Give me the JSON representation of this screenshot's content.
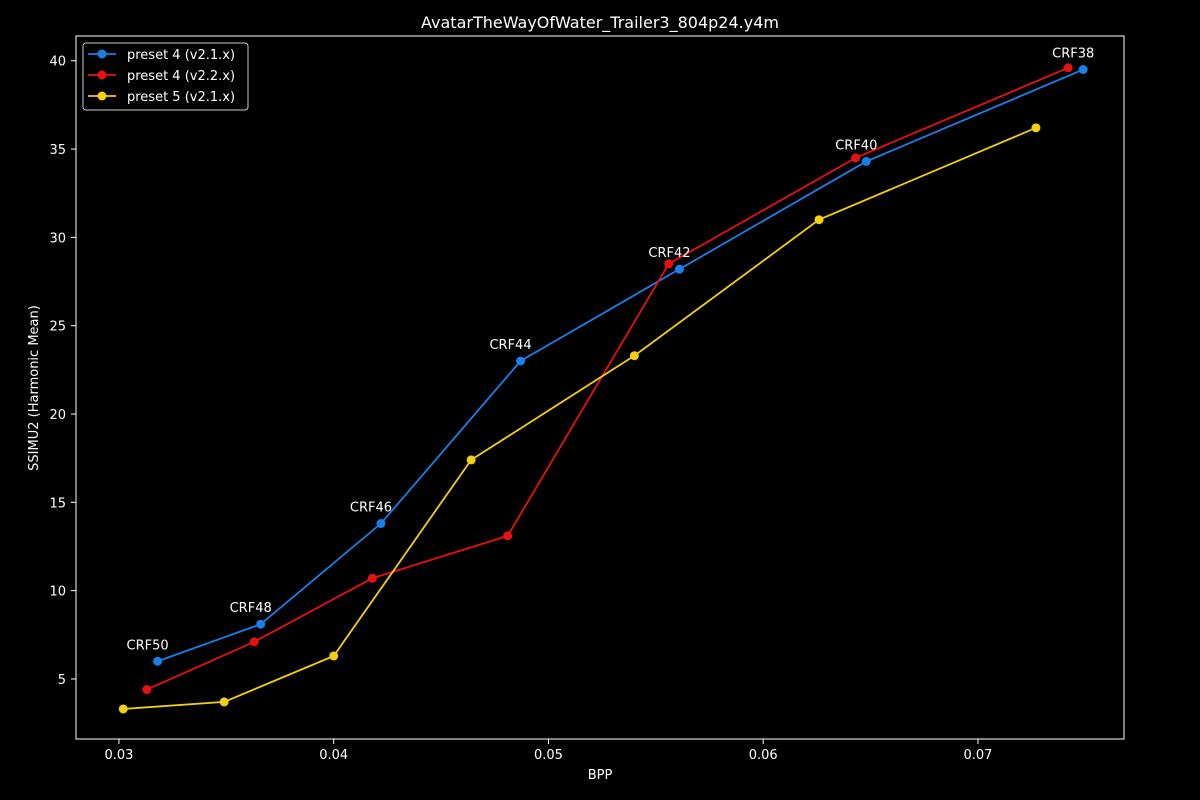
{
  "chart_data": {
    "type": "line",
    "title": "AvatarTheWayOfWater_Trailer3_804p24.y4m",
    "xlabel": "BPP",
    "ylabel": "SSIMU2 (Harmonic Mean)",
    "xlim": [
      0.028,
      0.0768
    ],
    "ylim": [
      1.6,
      41.4
    ],
    "xticks": [
      "0.03",
      "0.04",
      "0.05",
      "0.06",
      "0.07"
    ],
    "yticks": [
      "5",
      "10",
      "15",
      "20",
      "25",
      "30",
      "35",
      "40"
    ],
    "grid": false,
    "legend_position": "top-left",
    "series": [
      {
        "name": "preset 4 (v2.1.x)",
        "color": "#1a7fe8",
        "x": [
          0.0318,
          0.0366,
          0.0422,
          0.0487,
          0.0561,
          0.0648,
          0.0749
        ],
        "y": [
          6.0,
          8.1,
          13.8,
          23.0,
          28.2,
          34.3,
          39.5
        ]
      },
      {
        "name": "preset 4 (v2.2.x)",
        "color": "#e81010",
        "x": [
          0.0313,
          0.0363,
          0.0418,
          0.0481,
          0.0556,
          0.0643,
          0.0742
        ],
        "y": [
          4.4,
          7.1,
          10.7,
          13.1,
          28.5,
          34.5,
          39.6
        ]
      },
      {
        "name": "preset 5 (v2.1.x)",
        "color": "#f2d00f",
        "x": [
          0.0302,
          0.0349,
          0.04,
          0.0464,
          0.054,
          0.0626,
          0.0727
        ],
        "y": [
          3.3,
          3.7,
          6.3,
          17.4,
          23.3,
          31.0,
          36.2
        ]
      }
    ],
    "annotations": [
      {
        "text": "CRF50",
        "x": 0.0318,
        "y": 6.0
      },
      {
        "text": "CRF48",
        "x": 0.0366,
        "y": 8.1
      },
      {
        "text": "CRF46",
        "x": 0.0422,
        "y": 13.8
      },
      {
        "text": "CRF44",
        "x": 0.0487,
        "y": 23.0
      },
      {
        "text": "CRF42",
        "x": 0.0561,
        "y": 28.2
      },
      {
        "text": "CRF40",
        "x": 0.0648,
        "y": 34.3
      },
      {
        "text": "CRF38",
        "x": 0.0749,
        "y": 39.5
      }
    ]
  }
}
